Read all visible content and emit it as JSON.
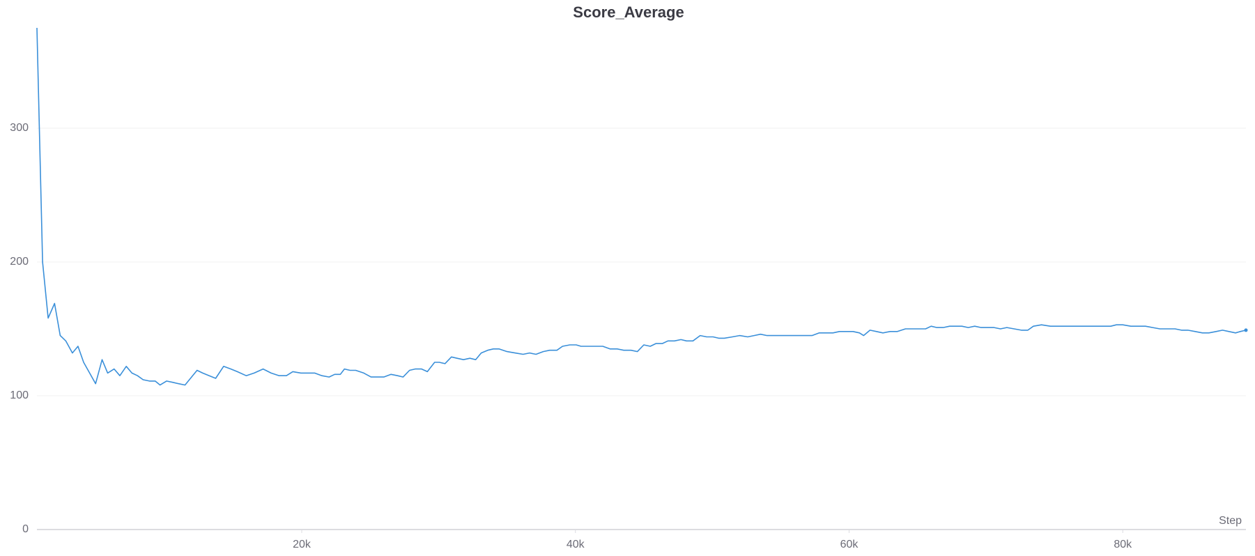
{
  "chart_data": {
    "type": "line",
    "title": "Score_Average",
    "x_label": "Step",
    "x": [
      650,
      1060,
      1470,
      1940,
      2350,
      2760,
      3240,
      3650,
      4060,
      4940,
      5410,
      5820,
      6290,
      6710,
      7180,
      7590,
      8000,
      8410,
      8880,
      9290,
      9650,
      10120,
      10590,
      11000,
      11470,
      12350,
      12760,
      13240,
      13710,
      14290,
      14820,
      15290,
      15940,
      16530,
      17180,
      17760,
      18350,
      18880,
      19350,
      19940,
      20470,
      20940,
      21470,
      22000,
      22410,
      22820,
      23120,
      23530,
      23940,
      24530,
      25060,
      25530,
      26000,
      26530,
      27000,
      27410,
      27880,
      28290,
      28760,
      29180,
      29710,
      30060,
      30470,
      30940,
      31350,
      31820,
      32290,
      32710,
      33120,
      33590,
      34000,
      34410,
      35000,
      35590,
      36180,
      36650,
      37120,
      37650,
      38120,
      38650,
      39060,
      39590,
      40060,
      40410,
      40880,
      41470,
      42000,
      42530,
      43060,
      43530,
      44060,
      44530,
      45000,
      45470,
      45880,
      46350,
      46760,
      47240,
      47710,
      48120,
      48590,
      49120,
      49590,
      50060,
      50470,
      50880,
      51470,
      52000,
      52590,
      53060,
      53530,
      54000,
      54470,
      54940,
      55410,
      55880,
      56350,
      56820,
      57290,
      57820,
      58350,
      58820,
      59290,
      59820,
      60290,
      60760,
      61060,
      61530,
      62000,
      62470,
      63000,
      63530,
      64120,
      64650,
      65180,
      65590,
      66000,
      66410,
      66880,
      67350,
      67760,
      68240,
      68710,
      69180,
      69650,
      70120,
      70590,
      71060,
      71530,
      72060,
      72590,
      73060,
      73470,
      74060,
      74710,
      75290,
      75880,
      76470,
      77060,
      77650,
      78120,
      78590,
      79120,
      79530,
      80000,
      80590,
      81120,
      81650,
      82180,
      82710,
      83290,
      83820,
      84290,
      84760,
      85290,
      85820,
      86290,
      86820,
      87290,
      87760,
      88240,
      88590,
      89000
    ],
    "series": [
      {
        "name": "Score_Average",
        "color": "#3a8fd9",
        "values": [
          375,
          200,
          158,
          169,
          145,
          141,
          132,
          137,
          125,
          109,
          127,
          117,
          120,
          115,
          122,
          117,
          115,
          112,
          111,
          111,
          108,
          111,
          110,
          109,
          108,
          119,
          117,
          115,
          113,
          122,
          120,
          118,
          115,
          117,
          120,
          117,
          115,
          115,
          118,
          117,
          117,
          117,
          115,
          114,
          116,
          116,
          120,
          119,
          119,
          117,
          114,
          114,
          114,
          116,
          115,
          114,
          119,
          120,
          120,
          118,
          125,
          125,
          124,
          129,
          128,
          127,
          128,
          127,
          132,
          134,
          135,
          135,
          133,
          132,
          131,
          132,
          131,
          133,
          134,
          134,
          137,
          138,
          138,
          137,
          137,
          137,
          137,
          135,
          135,
          134,
          134,
          133,
          138,
          137,
          139,
          139,
          141,
          141,
          142,
          141,
          141,
          145,
          144,
          144,
          143,
          143,
          144,
          145,
          144,
          145,
          146,
          145,
          145,
          145,
          145,
          145,
          145,
          145,
          145,
          147,
          147,
          147,
          148,
          148,
          148,
          147,
          145,
          149,
          148,
          147,
          148,
          148,
          150,
          150,
          150,
          150,
          152,
          151,
          151,
          152,
          152,
          152,
          151,
          152,
          151,
          151,
          151,
          150,
          151,
          150,
          149,
          149,
          152,
          153,
          152,
          152,
          152,
          152,
          152,
          152,
          152,
          152,
          152,
          153,
          153,
          152,
          152,
          152,
          151,
          150,
          150,
          150,
          149,
          149,
          148,
          147,
          147,
          148,
          149,
          148,
          147,
          148,
          149
        ]
      }
    ],
    "xlim": [
      650,
      89000
    ],
    "ylim": [
      0,
      375
    ],
    "xticks": [
      {
        "value": 20000,
        "label": "20k"
      },
      {
        "value": 40000,
        "label": "40k"
      },
      {
        "value": 60000,
        "label": "60k"
      },
      {
        "value": 80000,
        "label": "80k"
      }
    ],
    "yticks": [
      0,
      100,
      200,
      300
    ],
    "grid": true
  }
}
